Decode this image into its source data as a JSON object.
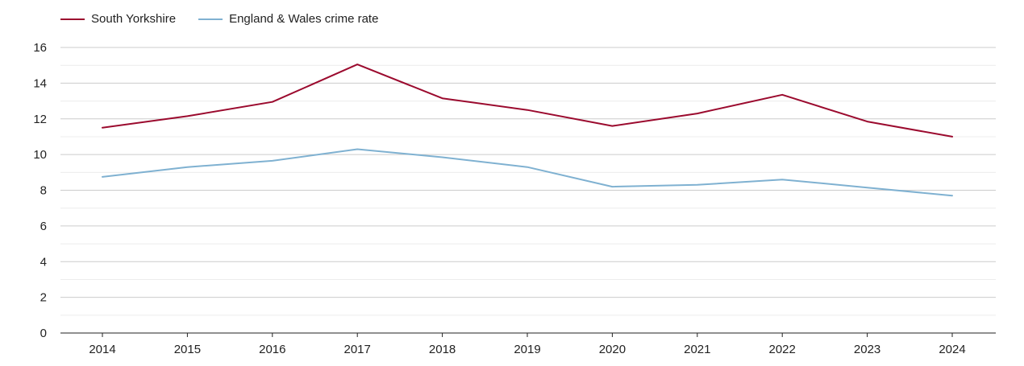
{
  "chart_data": {
    "type": "line",
    "title": "",
    "xlabel": "",
    "ylabel": "",
    "x": [
      "2014",
      "2015",
      "2016",
      "2017",
      "2018",
      "2019",
      "2020",
      "2021",
      "2022",
      "2023",
      "2024"
    ],
    "ylim": [
      0,
      16
    ],
    "yticks": [
      0,
      2,
      4,
      6,
      8,
      10,
      12,
      14,
      16
    ],
    "minor_grid": true,
    "legend_position": "top-left",
    "series": [
      {
        "name": "South Yorkshire",
        "color": "#9b0a2e",
        "values": [
          11.5,
          12.15,
          12.95,
          15.05,
          13.15,
          12.5,
          11.6,
          12.3,
          13.35,
          11.85,
          11.0
        ]
      },
      {
        "name": "England & Wales crime rate",
        "color": "#7fb1d1",
        "values": [
          8.75,
          9.3,
          9.65,
          10.3,
          9.85,
          9.3,
          8.2,
          8.3,
          8.6,
          8.15,
          7.7
        ]
      }
    ]
  }
}
